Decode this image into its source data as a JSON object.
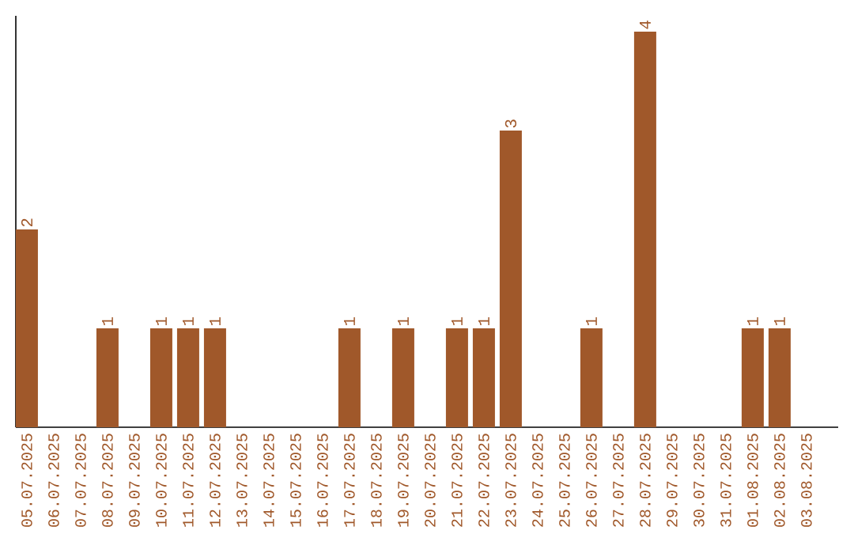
{
  "chart_data": {
    "type": "bar",
    "categories": [
      "05.07.2025",
      "06.07.2025",
      "07.07.2025",
      "08.07.2025",
      "09.07.2025",
      "10.07.2025",
      "11.07.2025",
      "12.07.2025",
      "13.07.2025",
      "14.07.2025",
      "15.07.2025",
      "16.07.2025",
      "17.07.2025",
      "18.07.2025",
      "19.07.2025",
      "20.07.2025",
      "21.07.2025",
      "22.07.2025",
      "23.07.2025",
      "24.07.2025",
      "25.07.2025",
      "26.07.2025",
      "27.07.2025",
      "28.07.2025",
      "29.07.2025",
      "30.07.2025",
      "31.07.2025",
      "01.08.2025",
      "02.08.2025",
      "03.08.2025"
    ],
    "values": [
      2,
      0,
      0,
      1,
      0,
      1,
      1,
      1,
      0,
      0,
      0,
      0,
      1,
      0,
      1,
      0,
      1,
      1,
      3,
      0,
      0,
      1,
      0,
      4,
      0,
      0,
      0,
      1,
      1,
      0
    ],
    "value_labels": [
      "2",
      null,
      null,
      "1",
      null,
      "1",
      "1",
      "1",
      null,
      null,
      null,
      null,
      "1",
      null,
      "1",
      null,
      "1",
      "1",
      "3",
      null,
      null,
      "1",
      null,
      "4",
      null,
      null,
      null,
      "1",
      "1",
      null
    ],
    "color": "#a0582a",
    "ylim": [
      0,
      4.16
    ],
    "tick_labels": "x"
  }
}
